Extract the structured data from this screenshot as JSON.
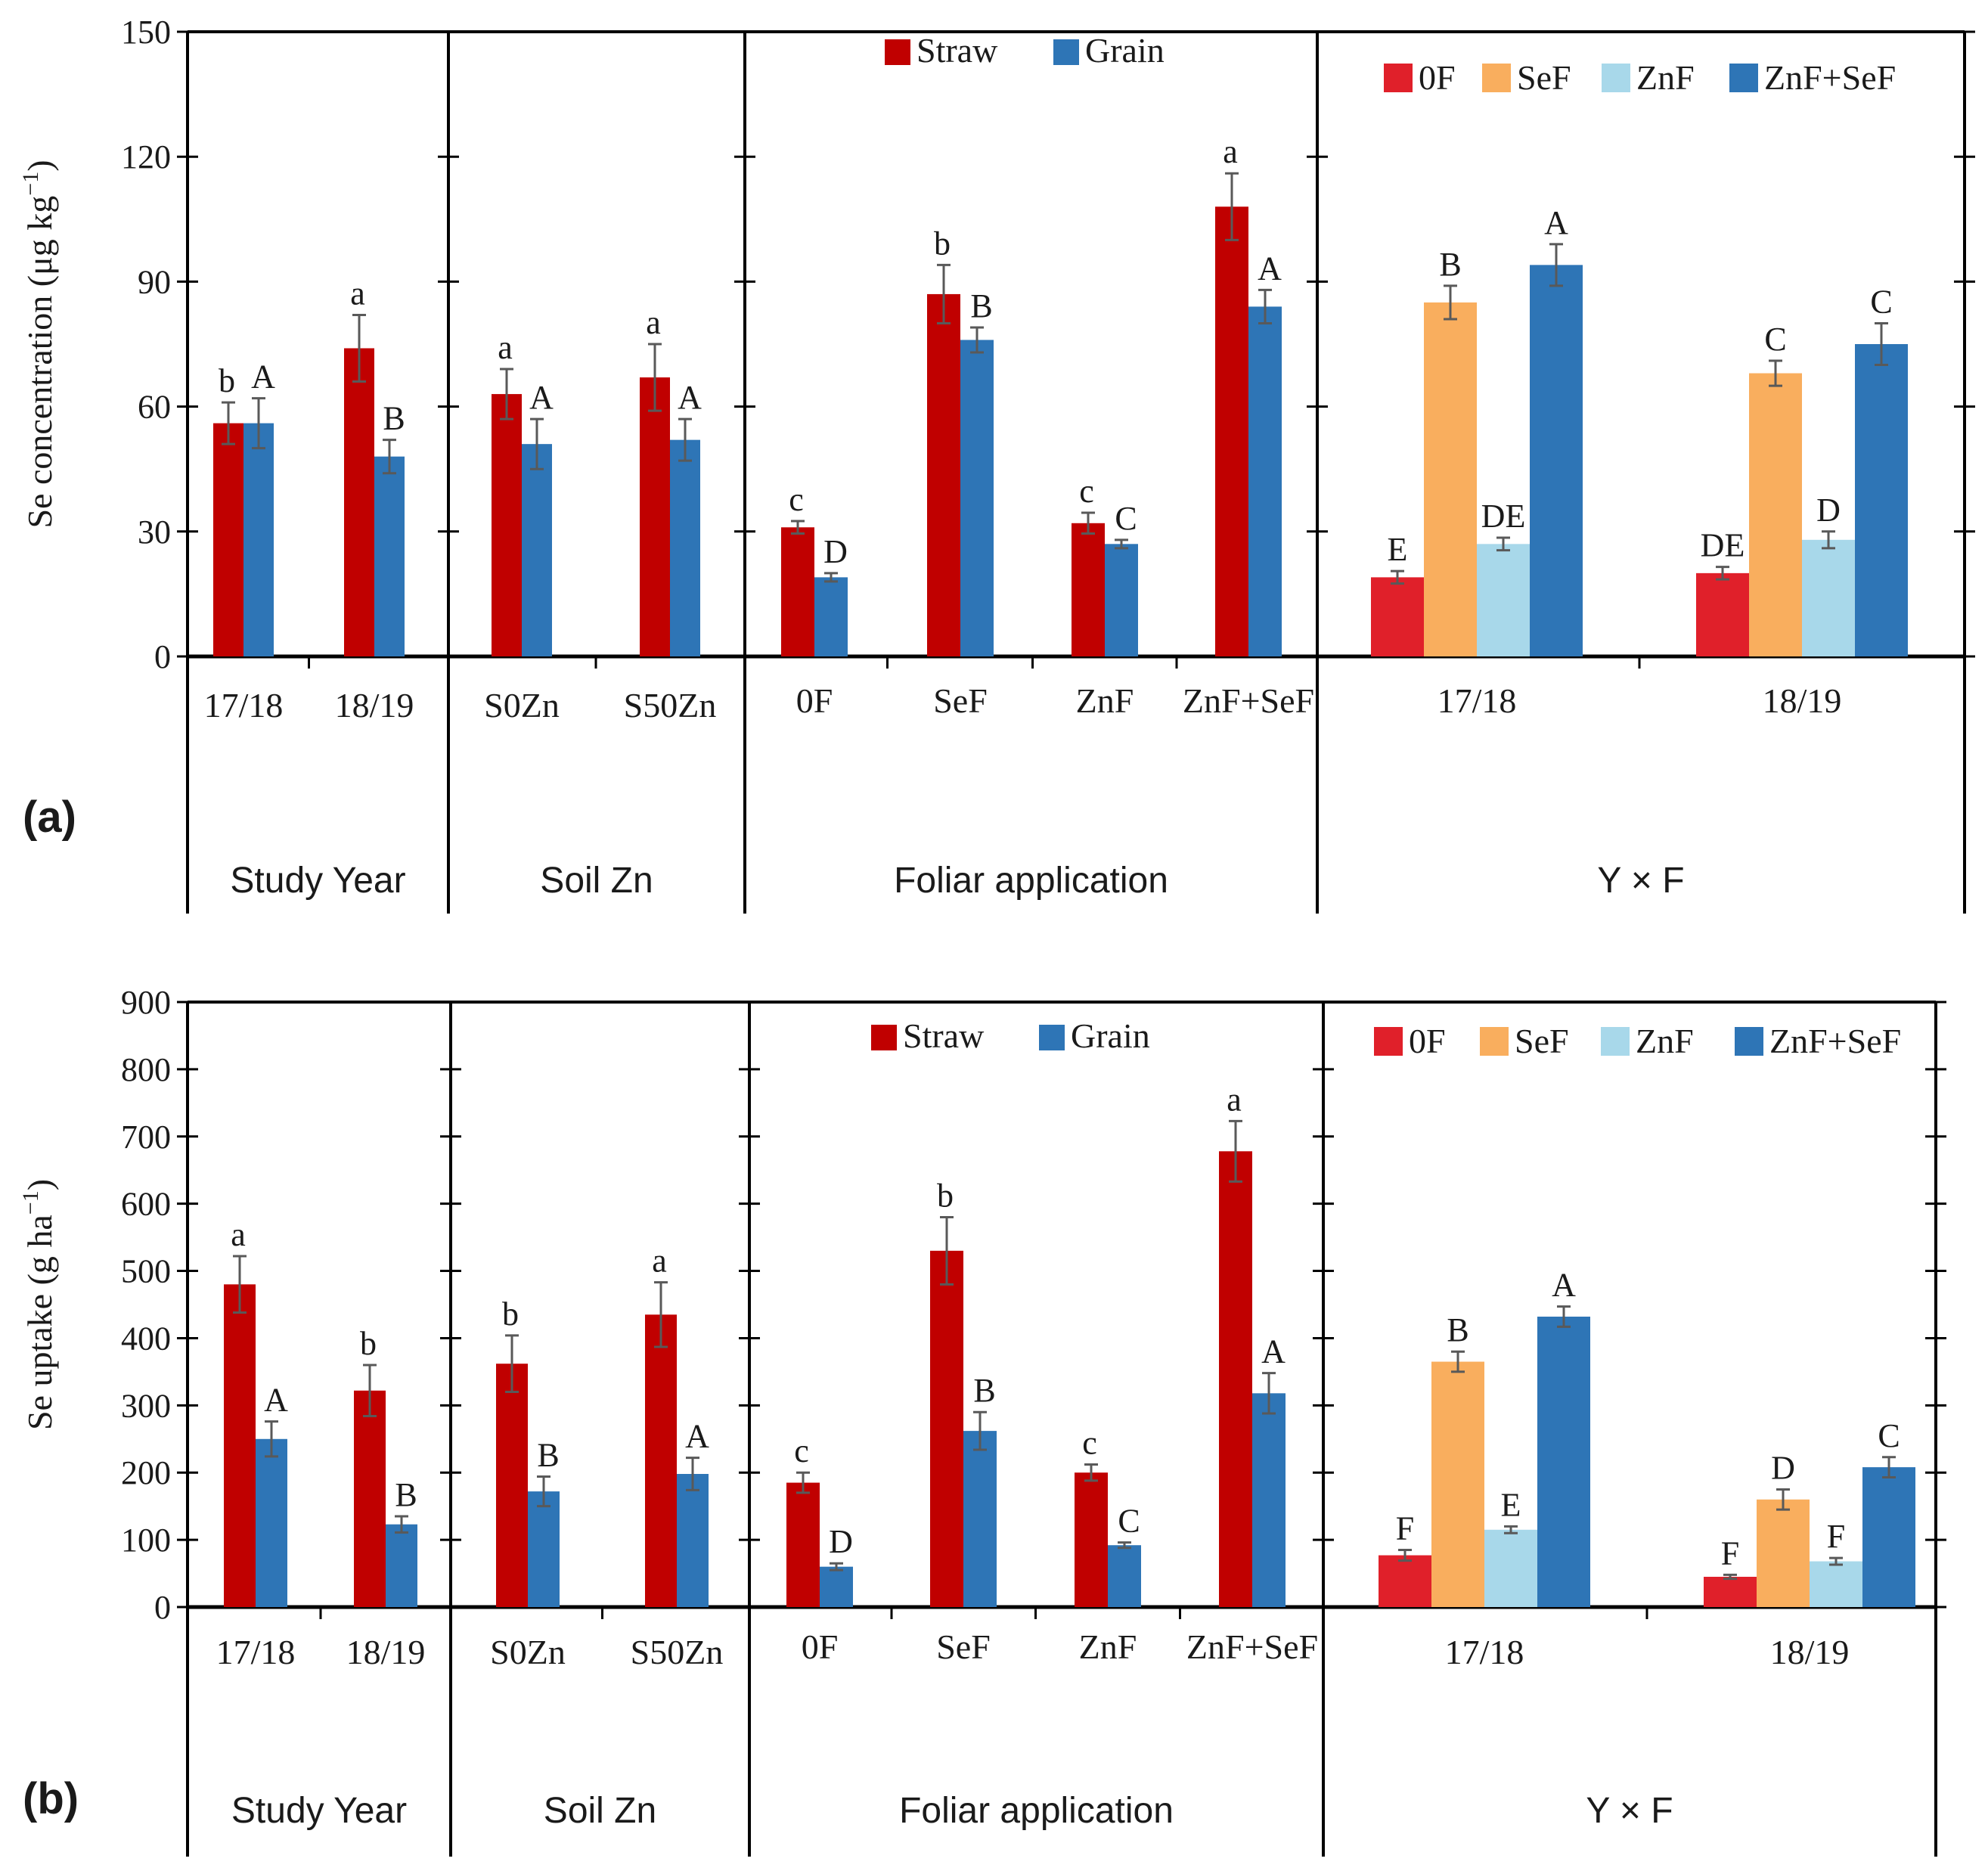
{
  "colors": {
    "straw": "#C00000",
    "grain": "#2E75B6",
    "zero_f": "#E0202A",
    "se_f": "#F9AE5E",
    "zn_f": "#A8D8EA",
    "znse_f": "#2E75B6",
    "axis": "#000000",
    "error_bar": "#595959"
  },
  "chart_data": [
    {
      "panel_label": "(a)",
      "type": "bar",
      "ylabel": "Se concentration (μg kg",
      "ylabel_sup": "−1",
      "ylabel_end": ")",
      "ylim": [
        0,
        150
      ],
      "yticks": [
        0,
        30,
        60,
        90,
        120,
        150
      ],
      "sections": [
        {
          "title": "Study Year",
          "categories": [
            "17/18",
            "18/19"
          ],
          "series": [
            {
              "name": "Straw",
              "color": "straw",
              "values": [
                56,
                74
              ],
              "errors": [
                5,
                8
              ],
              "letters": [
                "b",
                "a"
              ]
            },
            {
              "name": "Grain",
              "color": "grain",
              "values": [
                56,
                48
              ],
              "errors": [
                6,
                4
              ],
              "letters": [
                "A",
                "B"
              ]
            }
          ]
        },
        {
          "title": "Soil Zn",
          "categories": [
            "S0Zn",
            "S50Zn"
          ],
          "series": [
            {
              "name": "Straw",
              "color": "straw",
              "values": [
                63,
                67
              ],
              "errors": [
                6,
                8
              ],
              "letters": [
                "a",
                "a"
              ]
            },
            {
              "name": "Grain",
              "color": "grain",
              "values": [
                51,
                52
              ],
              "errors": [
                6,
                5
              ],
              "letters": [
                "A",
                "A"
              ]
            }
          ]
        },
        {
          "title": "Foliar application",
          "legend": [
            "Straw",
            "Grain"
          ],
          "categories": [
            "0F",
            "SeF",
            "ZnF",
            "ZnF+SeF"
          ],
          "series": [
            {
              "name": "Straw",
              "color": "straw",
              "values": [
                31,
                87,
                32,
                108
              ],
              "errors": [
                1.5,
                7,
                2.5,
                8
              ],
              "letters": [
                "c",
                "b",
                "c",
                "a"
              ]
            },
            {
              "name": "Grain",
              "color": "grain",
              "values": [
                19,
                76,
                27,
                84
              ],
              "errors": [
                1,
                3,
                1,
                4
              ],
              "letters": [
                "D",
                "B",
                "C",
                "A"
              ]
            }
          ]
        },
        {
          "title": "Y × F",
          "legend": [
            "0F",
            "SeF",
            "ZnF",
            "ZnF+SeF"
          ],
          "categories": [
            "17/18",
            "18/19"
          ],
          "series": [
            {
              "name": "0F",
              "color": "zero_f",
              "values": [
                19,
                20
              ],
              "errors": [
                1.5,
                1.5
              ],
              "letters": [
                "E",
                "DE"
              ]
            },
            {
              "name": "SeF",
              "color": "se_f",
              "values": [
                85,
                68
              ],
              "errors": [
                4,
                3
              ],
              "letters": [
                "B",
                "C"
              ]
            },
            {
              "name": "ZnF",
              "color": "zn_f",
              "values": [
                27,
                28
              ],
              "errors": [
                1.5,
                2
              ],
              "letters": [
                "DE",
                "D"
              ]
            },
            {
              "name": "ZnF+SeF",
              "color": "znse_f",
              "values": [
                94,
                75
              ],
              "errors": [
                5,
                5
              ],
              "letters": [
                "A",
                "C"
              ]
            }
          ]
        }
      ]
    },
    {
      "panel_label": "(b)",
      "type": "bar",
      "ylabel": "Se uptake (g ha",
      "ylabel_sup": "−1",
      "ylabel_end": ")",
      "ylim": [
        0,
        900
      ],
      "yticks": [
        0,
        100,
        200,
        300,
        400,
        500,
        600,
        700,
        800,
        900
      ],
      "sections": [
        {
          "title": "Study Year",
          "categories": [
            "17/18",
            "18/19"
          ],
          "series": [
            {
              "name": "Straw",
              "color": "straw",
              "values": [
                480,
                322
              ],
              "errors": [
                42,
                38
              ],
              "letters": [
                "a",
                "b"
              ]
            },
            {
              "name": "Grain",
              "color": "grain",
              "values": [
                250,
                123
              ],
              "errors": [
                26,
                12
              ],
              "letters": [
                "A",
                "B"
              ]
            }
          ]
        },
        {
          "title": "Soil Zn",
          "categories": [
            "S0Zn",
            "S50Zn"
          ],
          "series": [
            {
              "name": "Straw",
              "color": "straw",
              "values": [
                362,
                435
              ],
              "errors": [
                42,
                48
              ],
              "letters": [
                "b",
                "a"
              ]
            },
            {
              "name": "Grain",
              "color": "grain",
              "values": [
                172,
                198
              ],
              "errors": [
                22,
                24
              ],
              "letters": [
                "B",
                "A"
              ]
            }
          ]
        },
        {
          "title": "Foliar application",
          "legend": [
            "Straw",
            "Grain"
          ],
          "categories": [
            "0F",
            "SeF",
            "ZnF",
            "ZnF+SeF"
          ],
          "series": [
            {
              "name": "Straw",
              "color": "straw",
              "values": [
                185,
                530,
                200,
                678
              ],
              "errors": [
                15,
                50,
                12,
                45
              ],
              "letters": [
                "c",
                "b",
                "c",
                "a"
              ]
            },
            {
              "name": "Grain",
              "color": "grain",
              "values": [
                60,
                262,
                92,
                318
              ],
              "errors": [
                5,
                28,
                4,
                30
              ],
              "letters": [
                "D",
                "B",
                "C",
                "A"
              ]
            }
          ]
        },
        {
          "title": "Y × F",
          "legend": [
            "0F",
            "SeF",
            "ZnF",
            "ZnF+SeF"
          ],
          "categories": [
            "17/18",
            "18/19"
          ],
          "series": [
            {
              "name": "0F",
              "color": "zero_f",
              "values": [
                77,
                45
              ],
              "errors": [
                8,
                3
              ],
              "letters": [
                "F",
                "F"
              ]
            },
            {
              "name": "SeF",
              "color": "se_f",
              "values": [
                365,
                160
              ],
              "errors": [
                15,
                15
              ],
              "letters": [
                "B",
                "D"
              ]
            },
            {
              "name": "ZnF",
              "color": "zn_f",
              "values": [
                115,
                68
              ],
              "errors": [
                5,
                5
              ],
              "letters": [
                "E",
                "F"
              ]
            },
            {
              "name": "ZnF+SeF",
              "color": "znse_f",
              "values": [
                432,
                208
              ],
              "errors": [
                15,
                15
              ],
              "letters": [
                "A",
                "C"
              ]
            }
          ]
        }
      ]
    }
  ]
}
